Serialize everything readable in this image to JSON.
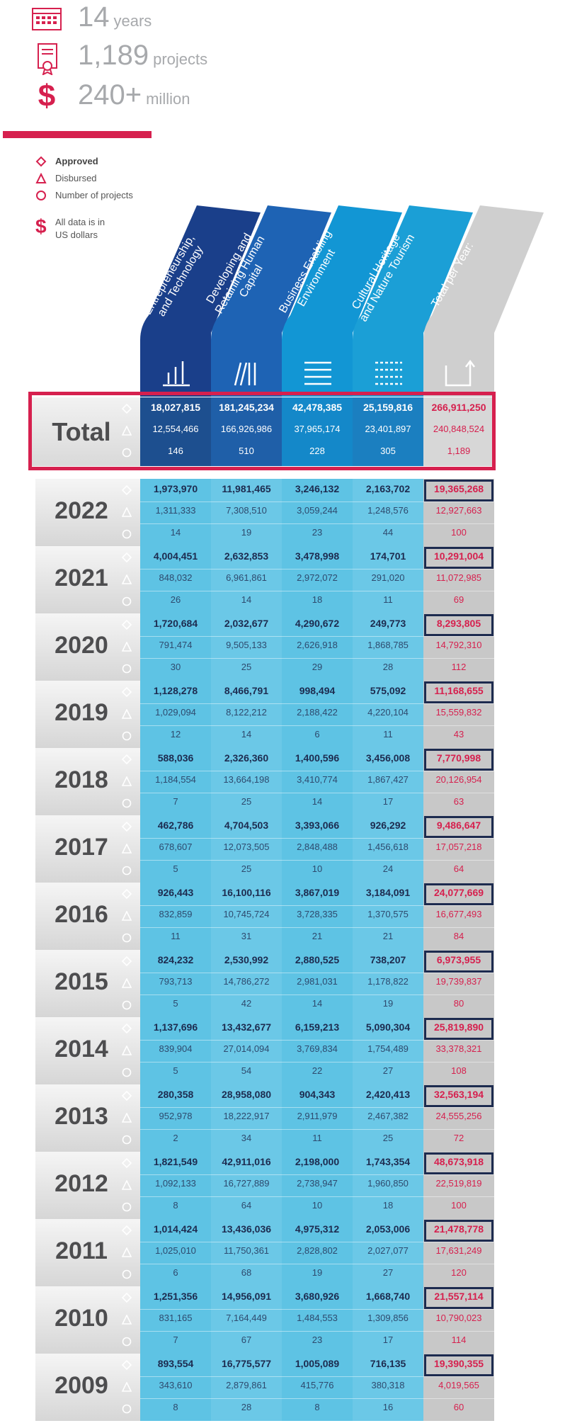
{
  "stats": [
    {
      "value": "14",
      "unit": "years",
      "icon": "calendar-icon"
    },
    {
      "value": "1,189",
      "unit": "projects",
      "icon": "certificate-icon"
    },
    {
      "value": "240+",
      "unit": "million",
      "icon": "dollar-icon"
    }
  ],
  "legend": {
    "approved": "Approved",
    "disbursed": "Disbursed",
    "projects": "Number of projects",
    "note_line1": "All data is in",
    "note_line2": "US dollars"
  },
  "columns": [
    {
      "label": "Business, Entrepreneurship, and Technology",
      "lines": [
        "Business,",
        "Entrepreneurship,",
        "and Technology"
      ],
      "icon": "bar-chart-icon",
      "color": "#1a3f8a"
    },
    {
      "label": "Developing and Retaining Human Capital",
      "lines": [
        "Developing and",
        "Retaining Human",
        "Capital"
      ],
      "icon": "books-icon",
      "color": "#1e63b4"
    },
    {
      "label": "Business Enabling Environment",
      "lines": [
        "Business Enabling",
        "Environment"
      ],
      "icon": "lines-icon",
      "color": "#1296d4"
    },
    {
      "label": "Cultural Heritage and Nature Tourism",
      "lines": [
        "Cultural Heritage",
        "and Nature Tourism"
      ],
      "icon": "list-icon",
      "color": "#1b9fd6"
    },
    {
      "label": "Total per Year:",
      "lines": [
        "Total per Year:"
      ],
      "icon": "corner-arrow-icon",
      "color": "#cfcfcf"
    }
  ],
  "colors": {
    "red": "#d6204e",
    "navy": "#1d2b4f",
    "gray": "#a7a9ac"
  },
  "total": {
    "label": "Total",
    "approved": [
      "18,027,815",
      "181,245,234",
      "42,478,385",
      "25,159,816",
      "266,911,250"
    ],
    "disbursed": [
      "12,554,466",
      "166,926,986",
      "37,965,174",
      "23,401,897",
      "240,848,524"
    ],
    "projects": [
      "146",
      "510",
      "228",
      "305",
      "1,189"
    ]
  },
  "chart_data": {
    "type": "table",
    "columns": [
      "Business, Entrepreneurship, and Technology",
      "Developing and Retaining Human Capital",
      "Business Enabling Environment",
      "Cultural Heritage and Nature Tourism",
      "Total per Year:"
    ],
    "rows": [
      {
        "year": "2022",
        "approved": [
          "1,973,970",
          "11,981,465",
          "3,246,132",
          "2,163,702",
          "19,365,268"
        ],
        "disbursed": [
          "1,311,333",
          "7,308,510",
          "3,059,244",
          "1,248,576",
          "12,927,663"
        ],
        "projects": [
          "14",
          "19",
          "23",
          "44",
          "100"
        ]
      },
      {
        "year": "2021",
        "approved": [
          "4,004,451",
          "2,632,853",
          "3,478,998",
          "174,701",
          "10,291,004"
        ],
        "disbursed": [
          "848,032",
          "6,961,861",
          "2,972,072",
          "291,020",
          "11,072,985"
        ],
        "projects": [
          "26",
          "14",
          "18",
          "11",
          "69"
        ]
      },
      {
        "year": "2020",
        "approved": [
          "1,720,684",
          "2,032,677",
          "4,290,672",
          "249,773",
          "8,293,805"
        ],
        "disbursed": [
          "791,474",
          "9,505,133",
          "2,626,918",
          "1,868,785",
          "14,792,310"
        ],
        "projects": [
          "30",
          "25",
          "29",
          "28",
          "112"
        ]
      },
      {
        "year": "2019",
        "approved": [
          "1,128,278",
          "8,466,791",
          "998,494",
          "575,092",
          "11,168,655"
        ],
        "disbursed": [
          "1,029,094",
          "8,122,212",
          "2,188,422",
          "4,220,104",
          "15,559,832"
        ],
        "projects": [
          "12",
          "14",
          "6",
          "11",
          "43"
        ]
      },
      {
        "year": "2018",
        "approved": [
          "588,036",
          "2,326,360",
          "1,400,596",
          "3,456,008",
          "7,770,998"
        ],
        "disbursed": [
          "1,184,554",
          "13,664,198",
          "3,410,774",
          "1,867,427",
          "20,126,954"
        ],
        "projects": [
          "7",
          "25",
          "14",
          "17",
          "63"
        ]
      },
      {
        "year": "2017",
        "approved": [
          "462,786",
          "4,704,503",
          "3,393,066",
          "926,292",
          "9,486,647"
        ],
        "disbursed": [
          "678,607",
          "12,073,505",
          "2,848,488",
          "1,456,618",
          "17,057,218"
        ],
        "projects": [
          "5",
          "25",
          "10",
          "24",
          "64"
        ]
      },
      {
        "year": "2016",
        "approved": [
          "926,443",
          "16,100,116",
          "3,867,019",
          "3,184,091",
          "24,077,669"
        ],
        "disbursed": [
          "832,859",
          "10,745,724",
          "3,728,335",
          "1,370,575",
          "16,677,493"
        ],
        "projects": [
          "11",
          "31",
          "21",
          "21",
          "84"
        ]
      },
      {
        "year": "2015",
        "approved": [
          "824,232",
          "2,530,992",
          "2,880,525",
          "738,207",
          "6,973,955"
        ],
        "disbursed": [
          "793,713",
          "14,786,272",
          "2,981,031",
          "1,178,822",
          "19,739,837"
        ],
        "projects": [
          "5",
          "42",
          "14",
          "19",
          "80"
        ]
      },
      {
        "year": "2014",
        "approved": [
          "1,137,696",
          "13,432,677",
          "6,159,213",
          "5,090,304",
          "25,819,890"
        ],
        "disbursed": [
          "839,904",
          "27,014,094",
          "3,769,834",
          "1,754,489",
          "33,378,321"
        ],
        "projects": [
          "5",
          "54",
          "22",
          "27",
          "108"
        ]
      },
      {
        "year": "2013",
        "approved": [
          "280,358",
          "28,958,080",
          "904,343",
          "2,420,413",
          "32,563,194"
        ],
        "disbursed": [
          "952,978",
          "18,222,917",
          "2,911,979",
          "2,467,382",
          "24,555,256"
        ],
        "projects": [
          "2",
          "34",
          "11",
          "25",
          "72"
        ]
      },
      {
        "year": "2012",
        "approved": [
          "1,821,549",
          "42,911,016",
          "2,198,000",
          "1,743,354",
          "48,673,918"
        ],
        "disbursed": [
          "1,092,133",
          "16,727,889",
          "2,738,947",
          "1,960,850",
          "22,519,819"
        ],
        "projects": [
          "8",
          "64",
          "10",
          "18",
          "100"
        ]
      },
      {
        "year": "2011",
        "approved": [
          "1,014,424",
          "13,436,036",
          "4,975,312",
          "2,053,006",
          "21,478,778"
        ],
        "disbursed": [
          "1,025,010",
          "11,750,361",
          "2,828,802",
          "2,027,077",
          "17,631,249"
        ],
        "projects": [
          "6",
          "68",
          "19",
          "27",
          "120"
        ]
      },
      {
        "year": "2010",
        "approved": [
          "1,251,356",
          "14,956,091",
          "3,680,926",
          "1,668,740",
          "21,557,114"
        ],
        "disbursed": [
          "831,165",
          "7,164,449",
          "1,484,553",
          "1,309,856",
          "10,790,023"
        ],
        "projects": [
          "7",
          "67",
          "23",
          "17",
          "114"
        ]
      },
      {
        "year": "2009",
        "approved": [
          "893,554",
          "16,775,577",
          "1,005,089",
          "716,135",
          "19,390,355"
        ],
        "disbursed": [
          "343,610",
          "2,879,861",
          "415,776",
          "380,318",
          "4,019,565"
        ],
        "projects": [
          "8",
          "28",
          "8",
          "16",
          "60"
        ]
      }
    ]
  }
}
